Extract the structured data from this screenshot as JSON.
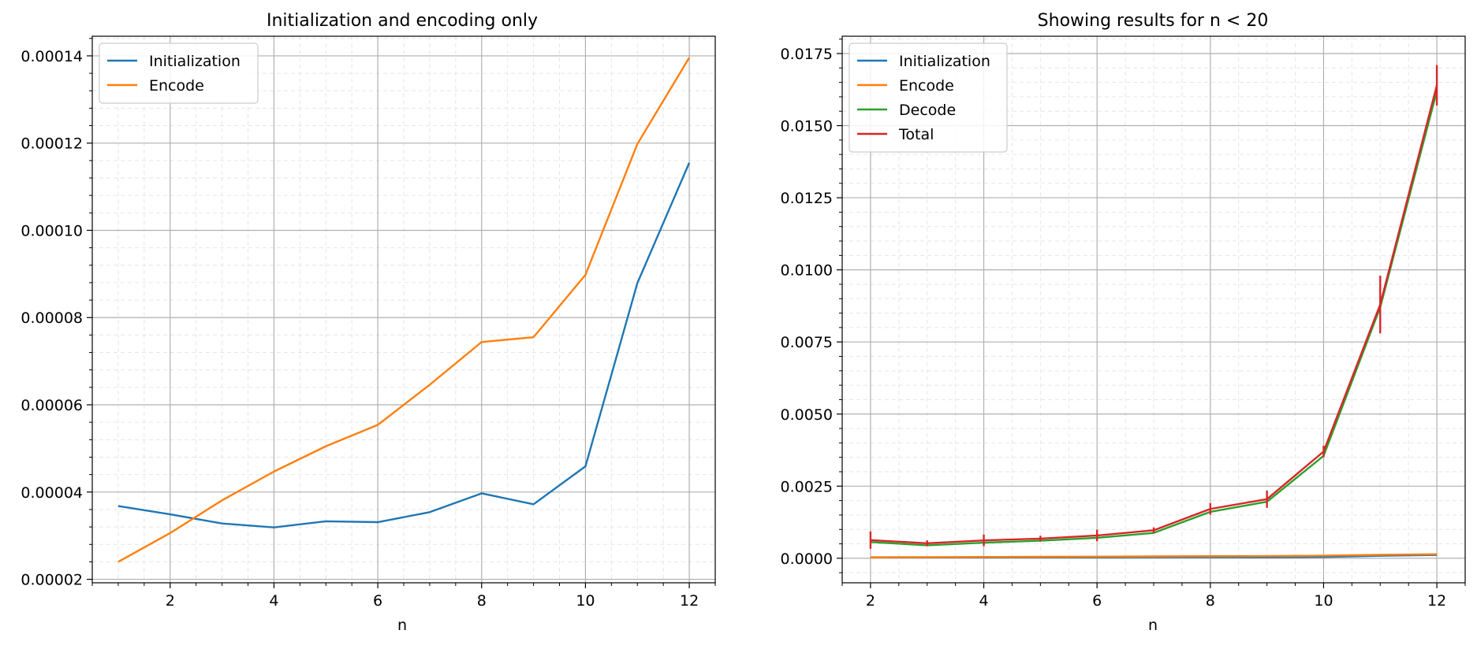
{
  "chart_data": [
    {
      "type": "line",
      "title": "Initialization and encoding only",
      "xlabel": "n",
      "ylabel": "",
      "xlim": [
        0.5,
        12.5
      ],
      "ylim": [
        1.92e-05,
        0.0001445
      ],
      "xticks": [
        2,
        4,
        6,
        8,
        10,
        12
      ],
      "xtick_labels": [
        "2",
        "4",
        "6",
        "8",
        "10",
        "12"
      ],
      "yticks": [
        2e-05,
        4e-05,
        6e-05,
        8e-05,
        0.0001,
        0.00012,
        0.00014
      ],
      "ytick_labels": [
        "0.00002",
        "0.00004",
        "0.00006",
        "0.00008",
        "0.00010",
        "0.00012",
        "0.00014"
      ],
      "grid": true,
      "minor_grid": true,
      "legend": "upper-left",
      "x": [
        1,
        2,
        3,
        4,
        5,
        6,
        7,
        8,
        9,
        10,
        11,
        12
      ],
      "series": [
        {
          "name": "Initialization",
          "color": "#1f77b4",
          "values": [
            3.68e-05,
            3.49e-05,
            3.28e-05,
            3.19e-05,
            3.33e-05,
            3.31e-05,
            3.54e-05,
            3.97e-05,
            3.72e-05,
            4.59e-05,
            8.79e-05,
            0.0001155
          ]
        },
        {
          "name": "Encode",
          "color": "#ff7f0e",
          "values": [
            2.4e-05,
            3.06e-05,
            3.81e-05,
            4.47e-05,
            5.05e-05,
            5.54e-05,
            6.46e-05,
            7.44e-05,
            7.55e-05,
            8.98e-05,
            0.0001198,
            0.0001396
          ]
        }
      ]
    },
    {
      "type": "line",
      "title": "Showing results for n < 20",
      "xlabel": "n",
      "ylabel": "",
      "xlim": [
        1.5,
        12.5
      ],
      "ylim": [
        -0.00085,
        0.0181
      ],
      "xticks": [
        2,
        4,
        6,
        8,
        10,
        12
      ],
      "xtick_labels": [
        "2",
        "4",
        "6",
        "8",
        "10",
        "12"
      ],
      "yticks": [
        0,
        0.0025,
        0.005,
        0.0075,
        0.01,
        0.0125,
        0.015,
        0.0175
      ],
      "ytick_labels": [
        "0.0000",
        "0.0025",
        "0.0050",
        "0.0075",
        "0.0100",
        "0.0125",
        "0.0150",
        "0.0175"
      ],
      "grid": true,
      "minor_grid": true,
      "legend": "upper-left",
      "x": [
        2,
        3,
        4,
        5,
        6,
        7,
        8,
        9,
        10,
        11,
        12
      ],
      "series": [
        {
          "name": "Initialization",
          "color": "#1f77b4",
          "values": [
            3.5e-05,
            3.3e-05,
            3.2e-05,
            3.3e-05,
            3.3e-05,
            3.5e-05,
            4e-05,
            3.7e-05,
            4.6e-05,
            8.8e-05,
            0.000116
          ]
        },
        {
          "name": "Encode",
          "color": "#ff7f0e",
          "values": [
            3.1e-05,
            3.8e-05,
            4.5e-05,
            5.1e-05,
            5.5e-05,
            6.5e-05,
            7.4e-05,
            7.6e-05,
            9e-05,
            0.00012,
            0.00014
          ]
        },
        {
          "name": "Decode",
          "color": "#2ca02c",
          "values": [
            0.00056,
            0.00045,
            0.00054,
            0.00061,
            0.00071,
            0.00088,
            0.00161,
            0.00196,
            0.00355,
            0.0087,
            0.0162
          ]
        },
        {
          "name": "Total",
          "color": "#d62728",
          "values": [
            0.00063,
            0.00052,
            0.00062,
            0.00068,
            0.00079,
            0.00097,
            0.00171,
            0.00205,
            0.0037,
            0.0088,
            0.0164
          ],
          "error": [
            0.0003,
            0.0001,
            0.0002,
            0.0001,
            0.0002,
            0.0001,
            0.0002,
            0.0003,
            0.0002,
            0.001,
            0.0007
          ]
        }
      ]
    }
  ]
}
